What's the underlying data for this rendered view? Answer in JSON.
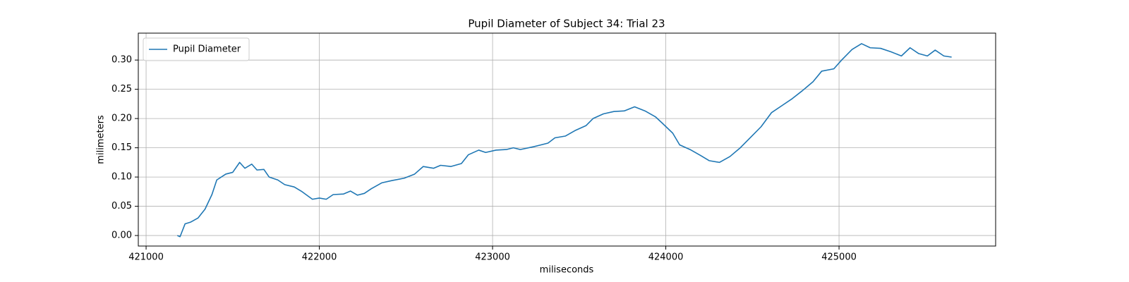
{
  "chart_data": {
    "type": "line",
    "title": "Pupil Diameter of Subject 34: Trial 23",
    "x_label": "miliseconds",
    "y_label": "milimeters",
    "x": [
      421180,
      421196,
      421225,
      421258,
      421300,
      421340,
      421380,
      421408,
      421460,
      421500,
      421540,
      421570,
      421610,
      421640,
      421680,
      421710,
      421760,
      421800,
      421855,
      421900,
      421960,
      422000,
      422040,
      422080,
      422140,
      422180,
      422220,
      422260,
      422300,
      422360,
      422420,
      422490,
      422550,
      422600,
      422660,
      422700,
      422760,
      422820,
      422860,
      422920,
      422960,
      423020,
      423080,
      423120,
      423160,
      423240,
      423320,
      423360,
      423420,
      423480,
      423540,
      423580,
      423640,
      423700,
      423760,
      423820,
      423880,
      423940,
      423980,
      424040,
      424080,
      424140,
      424200,
      424250,
      424310,
      424370,
      424430,
      424490,
      424550,
      424610,
      424670,
      424730,
      424790,
      424850,
      424900,
      424970,
      425015,
      425075,
      425130,
      425180,
      425240,
      425300,
      425360,
      425410,
      425460,
      425510,
      425555,
      425605,
      425650
    ],
    "series": [
      {
        "name": "Pupil Diameter",
        "color": "#1f77b4",
        "values": [
          0.0,
          -0.002,
          0.02,
          0.023,
          0.03,
          0.045,
          0.07,
          0.095,
          0.105,
          0.108,
          0.125,
          0.115,
          0.122,
          0.112,
          0.113,
          0.1,
          0.095,
          0.087,
          0.083,
          0.075,
          0.062,
          0.064,
          0.062,
          0.07,
          0.071,
          0.076,
          0.069,
          0.072,
          0.08,
          0.09,
          0.094,
          0.098,
          0.105,
          0.118,
          0.115,
          0.12,
          0.118,
          0.123,
          0.138,
          0.146,
          0.142,
          0.146,
          0.147,
          0.15,
          0.147,
          0.152,
          0.158,
          0.167,
          0.17,
          0.18,
          0.188,
          0.2,
          0.208,
          0.212,
          0.213,
          0.22,
          0.213,
          0.203,
          0.192,
          0.175,
          0.155,
          0.147,
          0.137,
          0.128,
          0.125,
          0.135,
          0.15,
          0.168,
          0.186,
          0.21,
          0.222,
          0.234,
          0.248,
          0.263,
          0.281,
          0.285,
          0.3,
          0.318,
          0.328,
          0.321,
          0.32,
          0.314,
          0.307,
          0.321,
          0.311,
          0.307,
          0.317,
          0.307,
          0.305
        ]
      }
    ],
    "xlim": [
      420955,
      425904
    ],
    "ylim": [
      -0.018,
      0.346
    ],
    "xticks": [
      421000,
      422000,
      423000,
      424000,
      425000
    ],
    "yticks": [
      {
        "value": 0,
        "label": "0.00"
      },
      {
        "value": 0.05,
        "label": "0.05"
      },
      {
        "value": 0.1,
        "label": "0.10"
      },
      {
        "value": 0.15,
        "label": "0.15"
      },
      {
        "value": 0.2,
        "label": "0.20"
      },
      {
        "value": 0.25,
        "label": "0.25"
      },
      {
        "value": 0.3,
        "label": "0.30"
      }
    ],
    "grid": true,
    "legend": "upper-left"
  }
}
